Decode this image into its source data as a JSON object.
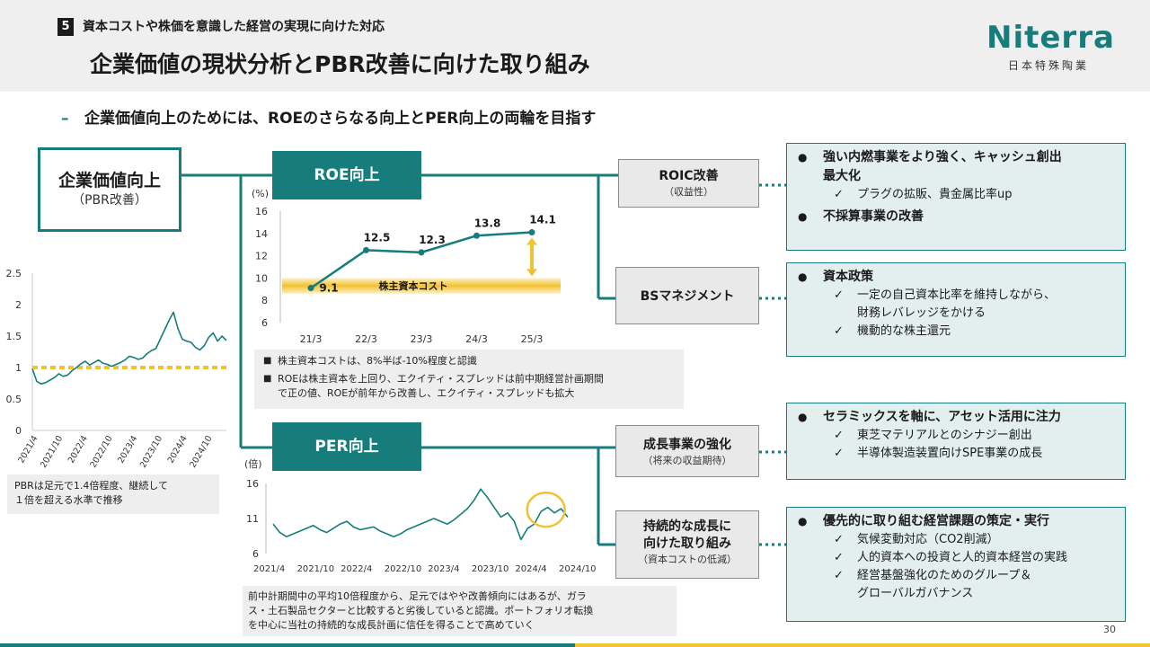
{
  "header": {
    "section_number": "5",
    "section_title": "資本コストや株価を意識した経営の実現に向けた対応",
    "page_title": "企業価値の現状分析とPBR改善に向けた取り組み",
    "logo_text": "Niterra",
    "logo_subtitle": "日本特殊陶業"
  },
  "lead": {
    "dash": "–",
    "text": "企業価値向上のためには、ROEのさらなる向上とPER向上の両輪を目指す"
  },
  "kv_box": {
    "title": "企業価値向上",
    "subtitle": "（PBR改善）"
  },
  "roe_label": "ROE向上",
  "per_label": "PER向上",
  "levers": {
    "roic": {
      "title": "ROIC改善",
      "subtitle": "（収益性）"
    },
    "bs": {
      "title": "BSマネジメント"
    },
    "growth": {
      "title": "成長事業の強化",
      "subtitle": "（将来の収益期待）"
    },
    "sustain": {
      "title_1": "持続的な成長に",
      "title_2": "向けた取り組み",
      "subtitle": "（資本コストの低減）"
    }
  },
  "details": {
    "roic": {
      "b1_1": "強い内燃事業をより強く、キャッシュ創出",
      "b1_2": "最大化",
      "c1": "プラグの拡販、貴金属比率up",
      "b2": "不採算事業の改善"
    },
    "bs": {
      "b1": "資本政策",
      "c1_1": "一定の自己資本比率を維持しながら、",
      "c1_2": "財務レバレッジをかける",
      "c2": "機動的な株主還元"
    },
    "growth": {
      "b1": "セラミックスを軸に、アセット活用に注力",
      "c1": "東芝マテリアルとのシナジー創出",
      "c2": "半導体製造装置向けSPE事業の成長"
    },
    "sustain": {
      "b1": "優先的に取り組む経営課題の策定・実行",
      "c1": "気候変動対応（CO2削減）",
      "c2": "人的資本への投資と人的資本経営の実践",
      "c3_1": "経営基盤強化のためのグループ＆",
      "c3_2": "グローバルガバナンス"
    },
    "check_mark": "✓"
  },
  "roe_note": {
    "item1": "株主資本コストは、8%半ば-10%程度と認識",
    "item2_1": "ROEは株主資本を上回り、エクイティ・スプレッドは前中期経営計画期間",
    "item2_2": "で正の値、ROEが前年から改善し、エクイティ・スプレッドも拡大"
  },
  "per_note": {
    "line1": "前中計期間中の平均10倍程度から、足元ではやや改善傾向にはあるが、ガラ",
    "line2": "ス・土石製品セクターと比較すると劣後していると認識。ポートフォリオ転換",
    "line3": "を中心に当社の持続的な成長計画に信任を得ることで高めていく"
  },
  "pbr_note": {
    "line1": "PBRは足元で1.4倍程度、継続して",
    "line2": "１倍を超える水準で推移"
  },
  "chart_data": [
    {
      "type": "line",
      "title": "",
      "ylabel": "(%)",
      "categories": [
        "21/3",
        "22/3",
        "23/3",
        "24/3",
        "25/3"
      ],
      "values": [
        9.1,
        12.5,
        12.3,
        13.8,
        14.1
      ],
      "value_labels": [
        "9.1",
        "12.5",
        "12.3",
        "13.8",
        "14.1"
      ],
      "yticks": [
        "6",
        "8",
        "10",
        "12",
        "14",
        "16"
      ],
      "ylim": [
        6,
        16
      ],
      "band_label": "株主資本コスト",
      "band_range": [
        8.6,
        10
      ],
      "colors": {
        "line": "#167c7c",
        "band": "#f1c232"
      }
    },
    {
      "type": "line",
      "title": "",
      "ylabel": "",
      "xticks": [
        "2021/4",
        "2021/10",
        "2022/4",
        "2022/10",
        "2023/4",
        "2023/10",
        "2024/4",
        "2024/10"
      ],
      "yticks": [
        "0",
        "0.5",
        "1",
        "1.5",
        "2",
        "2.5"
      ],
      "ylim": [
        0,
        2.5
      ],
      "reference_line": 1,
      "x": [
        0,
        1,
        2,
        3,
        4,
        5,
        6,
        7,
        8,
        9,
        10,
        11,
        12,
        13,
        14,
        15,
        16,
        17,
        18,
        19,
        20,
        21,
        22,
        23,
        24,
        25,
        26,
        27,
        28,
        29,
        30,
        31,
        32,
        33,
        34,
        35,
        36,
        37,
        38,
        39,
        40,
        41,
        42,
        43,
        44
      ],
      "values": [
        0.98,
        0.78,
        0.74,
        0.76,
        0.8,
        0.84,
        0.9,
        0.86,
        0.88,
        0.95,
        1.0,
        1.06,
        1.1,
        1.04,
        1.08,
        1.12,
        1.07,
        1.05,
        1.02,
        1.05,
        1.08,
        1.12,
        1.18,
        1.16,
        1.13,
        1.15,
        1.22,
        1.27,
        1.3,
        1.45,
        1.6,
        1.75,
        1.88,
        1.62,
        1.45,
        1.42,
        1.4,
        1.32,
        1.28,
        1.35,
        1.48,
        1.55,
        1.42,
        1.5,
        1.43
      ],
      "colors": {
        "line": "#167c7c",
        "reference": "#f1c232"
      }
    },
    {
      "type": "line",
      "title": "",
      "ylabel": "(倍)",
      "xticks": [
        "2021/4",
        "2021/10",
        "2022/4",
        "2022/10",
        "2023/4",
        "2023/10",
        "2024/4",
        "2024/10"
      ],
      "yticks": [
        "6",
        "11",
        "16"
      ],
      "ylim": [
        6,
        16
      ],
      "x": [
        0,
        1,
        2,
        3,
        4,
        5,
        6,
        7,
        8,
        9,
        10,
        11,
        12,
        13,
        14,
        15,
        16,
        17,
        18,
        19,
        20,
        21,
        22,
        23,
        24,
        25,
        26,
        27,
        28,
        29,
        30,
        31,
        32,
        33,
        34,
        35,
        36,
        37,
        38,
        39,
        40,
        41,
        42,
        43,
        44
      ],
      "values": [
        10.2,
        9.0,
        8.4,
        8.8,
        9.2,
        9.6,
        10.0,
        9.4,
        9.0,
        9.6,
        10.2,
        10.6,
        9.8,
        9.4,
        9.6,
        9.8,
        9.2,
        8.8,
        8.4,
        8.8,
        9.4,
        9.8,
        10.2,
        10.6,
        11.0,
        10.6,
        10.2,
        10.8,
        11.6,
        12.4,
        13.6,
        15.2,
        14.0,
        12.6,
        11.2,
        11.8,
        10.6,
        8.0,
        9.6,
        10.2,
        12.0,
        12.6,
        11.8,
        12.4,
        11.2
      ],
      "colors": {
        "line": "#167c7c",
        "highlight": "#f1c232"
      }
    }
  ],
  "page_number": "30"
}
